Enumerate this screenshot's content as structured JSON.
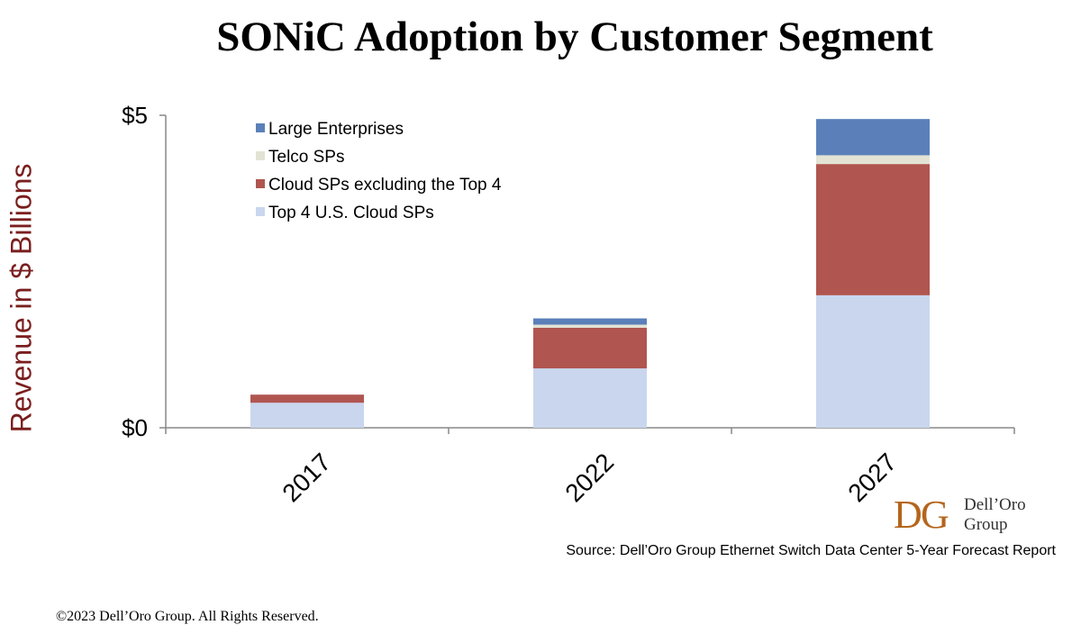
{
  "chart_data": {
    "type": "bar",
    "stacked": true,
    "title": "SONiC Adoption by Customer Segment",
    "xlabel": "",
    "ylabel": "Revenue in $ Billions",
    "ylim": [
      0,
      5
    ],
    "yticks": [
      {
        "value": 0,
        "label": "$0"
      },
      {
        "value": 5,
        "label": "$5"
      }
    ],
    "categories": [
      "2017",
      "2022",
      "2027"
    ],
    "series": [
      {
        "name": "Top 4 U.S. Cloud SPs",
        "color": "#c9d6ee",
        "values": [
          0.4,
          0.95,
          2.12
        ]
      },
      {
        "name": "Cloud SPs excluding the Top 4",
        "color": "#b05550",
        "values": [
          0.13,
          0.65,
          2.1
        ]
      },
      {
        "name": "Telco SPs",
        "color": "#e3e3d5",
        "values": [
          0,
          0.05,
          0.14
        ]
      },
      {
        "name": "Large Enterprises",
        "color": "#5b80b9",
        "values": [
          0,
          0.1,
          0.58
        ]
      }
    ],
    "legend_order": [
      "Large Enterprises",
      "Telco SPs",
      "Cloud SPs excluding the Top 4",
      "Top 4 U.S. Cloud SPs"
    ],
    "legend_position": "top-left",
    "grid": false
  },
  "logo": {
    "line1": "Dell’Oro",
    "line2": "Group"
  },
  "source": "Source: Dell’Oro Group Ethernet Switch Data Center 5-Year Forecast Report",
  "copyright": "©2023 Dell’Oro Group. All Rights Reserved."
}
